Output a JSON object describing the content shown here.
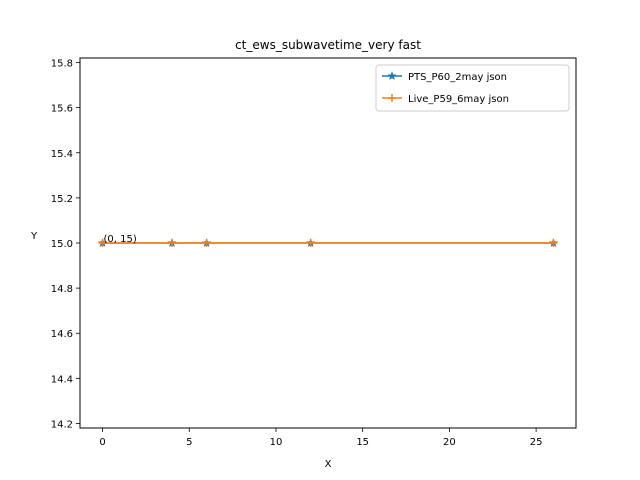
{
  "chart_data": {
    "type": "line",
    "title": "ct_ews_subwavetime_very fast",
    "xlabel": "X",
    "ylabel": "Y",
    "xlim": [
      -1.3,
      27.3
    ],
    "ylim": [
      14.18,
      15.82
    ],
    "xticks": [
      0,
      5,
      10,
      15,
      20,
      25
    ],
    "yticks": [
      14.2,
      14.4,
      14.6,
      14.8,
      15.0,
      15.2,
      15.4,
      15.6,
      15.8
    ],
    "xtick_labels": [
      "0",
      "5",
      "10",
      "15",
      "20",
      "25"
    ],
    "ytick_labels": [
      "14.2",
      "14.4",
      "14.6",
      "14.8",
      "15.0",
      "15.2",
      "15.4",
      "15.6",
      "15.8"
    ],
    "grid": false,
    "legend_position": "top-right",
    "series": [
      {
        "name": "PTS_P60_2may json",
        "color": "#1f77b4",
        "marker": "star",
        "x": [
          0,
          4,
          6,
          12,
          26
        ],
        "y": [
          15,
          15,
          15,
          15,
          15
        ]
      },
      {
        "name": "Live_P59_6may json",
        "color": "#ff7f0e",
        "marker": "plus",
        "x": [
          0,
          4,
          6,
          12,
          26
        ],
        "y": [
          15,
          15,
          15,
          15,
          15
        ]
      }
    ],
    "annotations": [
      {
        "text": "(0, 15)",
        "x": 0,
        "y": 15
      }
    ]
  }
}
